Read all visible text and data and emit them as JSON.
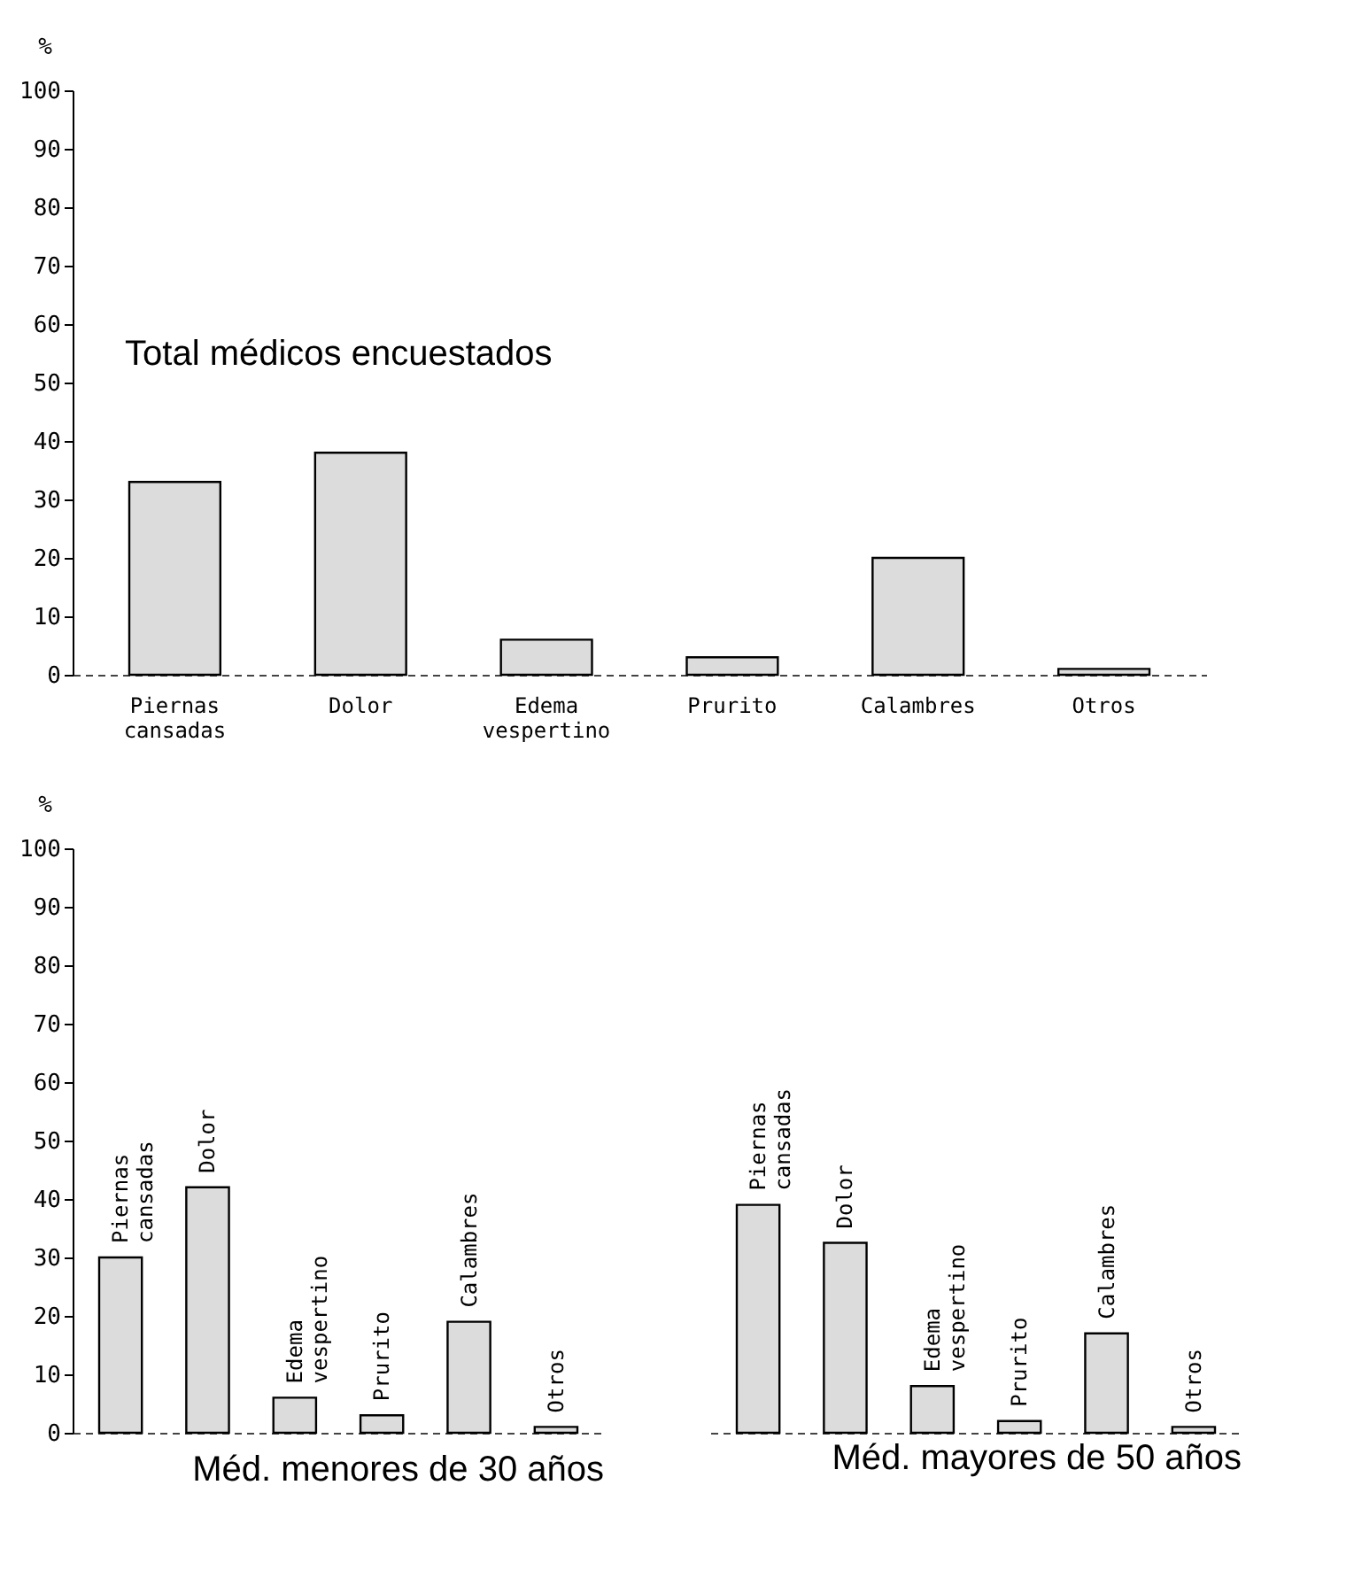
{
  "chart_data": [
    {
      "type": "bar",
      "title": "Total médicos encuestados",
      "ylabel": "%",
      "categories": [
        "Piernas cansadas",
        "Dolor",
        "Edema vespertino",
        "Prurito",
        "Calambres",
        "Otros"
      ],
      "values": [
        33,
        38,
        6,
        3,
        20,
        1
      ],
      "color": "#dcdcdc",
      "ylim": [
        0,
        100
      ],
      "yticks": [
        0,
        10,
        20,
        30,
        40,
        50,
        60,
        70,
        80,
        90,
        100
      ],
      "grid": false
    },
    {
      "type": "bar",
      "title": "Méd. menores de 30 años",
      "ylabel": "%",
      "categories": [
        "Piernas cansadas",
        "Dolor",
        "Edema vespertino",
        "Prurito",
        "Calambres",
        "Otros"
      ],
      "values": [
        30,
        42,
        6,
        3,
        19,
        1
      ],
      "color": "#dcdcdc",
      "ylim": [
        0,
        100
      ],
      "yticks": [
        0,
        10,
        20,
        30,
        40,
        50,
        60,
        70,
        80,
        90,
        100
      ],
      "grid": false
    },
    {
      "type": "bar",
      "title": "Méd. mayores de 50 años",
      "categories": [
        "Piernas cansadas",
        "Dolor",
        "Edema vespertino",
        "Prurito",
        "Calambres",
        "Otros"
      ],
      "values": [
        39,
        32.5,
        8,
        2,
        17,
        1
      ],
      "color": "#dcdcdc",
      "ylim": [
        0,
        100
      ],
      "grid": false,
      "tick_labels": "x"
    }
  ]
}
